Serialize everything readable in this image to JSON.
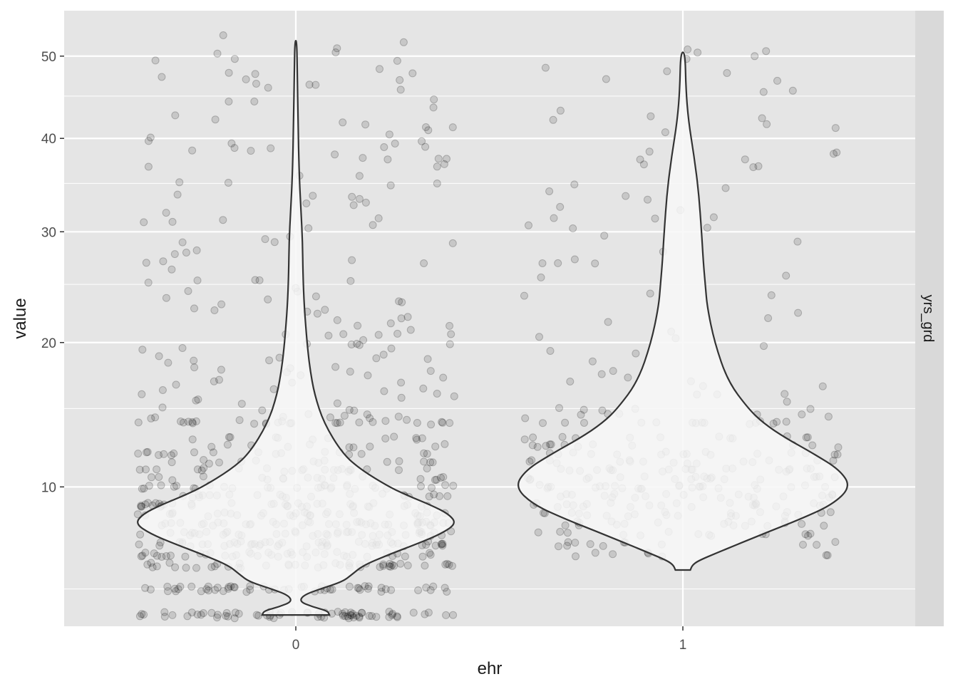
{
  "chart_data": {
    "type": "violin",
    "xlabel": "ehr",
    "ylabel": "value",
    "facet_label": "yrs_grd",
    "y_scale": "sqrt",
    "ylim": [
      3.6,
      56
    ],
    "y_ticks": [
      10,
      20,
      30,
      40,
      50
    ],
    "y_minor_ticks": [
      5,
      15,
      25,
      35,
      45
    ],
    "categories": [
      "0",
      "1"
    ],
    "colors": {
      "panel_bg": "#e5e5e5",
      "grid": "#ffffff",
      "strip_bg": "#d9d9d9",
      "violin_fill": "#f7f7f7",
      "violin_stroke": "#333333",
      "point": "#000000"
    },
    "violins": [
      {
        "category": "0",
        "y_min": 4,
        "y_max": 52,
        "profile": [
          [
            4.0,
            0.18
          ],
          [
            4.15,
            0.17
          ],
          [
            4.3,
            0.09
          ],
          [
            4.5,
            0.02
          ],
          [
            4.75,
            0.04
          ],
          [
            5.0,
            0.13
          ],
          [
            5.3,
            0.25
          ],
          [
            5.6,
            0.3
          ],
          [
            6.0,
            0.36
          ],
          [
            6.5,
            0.5
          ],
          [
            7.0,
            0.65
          ],
          [
            7.5,
            0.78
          ],
          [
            8.0,
            0.86
          ],
          [
            8.5,
            0.82
          ],
          [
            9.0,
            0.72
          ],
          [
            9.5,
            0.6
          ],
          [
            10.0,
            0.5
          ],
          [
            11.0,
            0.35
          ],
          [
            12.0,
            0.25
          ],
          [
            14.0,
            0.15
          ],
          [
            16.0,
            0.1
          ],
          [
            18.0,
            0.075
          ],
          [
            20.0,
            0.06
          ],
          [
            23.0,
            0.045
          ],
          [
            26.0,
            0.038
          ],
          [
            29.0,
            0.036
          ],
          [
            32.0,
            0.028
          ],
          [
            36.0,
            0.018
          ],
          [
            42.0,
            0.012
          ],
          [
            48.0,
            0.008
          ],
          [
            52.0,
            0.005
          ]
        ]
      },
      {
        "category": "1",
        "y_min": 5.8,
        "y_max": 50.5,
        "profile": [
          [
            5.8,
            0.04
          ],
          [
            6.0,
            0.05
          ],
          [
            6.2,
            0.08
          ],
          [
            6.6,
            0.19
          ],
          [
            7.0,
            0.3
          ],
          [
            7.6,
            0.46
          ],
          [
            8.2,
            0.62
          ],
          [
            9.0,
            0.8
          ],
          [
            10.0,
            0.9
          ],
          [
            11.0,
            0.84
          ],
          [
            12.0,
            0.7
          ],
          [
            13.0,
            0.55
          ],
          [
            14.0,
            0.43
          ],
          [
            15.0,
            0.35
          ],
          [
            17.0,
            0.24
          ],
          [
            20.0,
            0.17
          ],
          [
            23.0,
            0.13
          ],
          [
            25.0,
            0.12
          ],
          [
            27.0,
            0.11
          ],
          [
            30.0,
            0.1
          ],
          [
            34.0,
            0.085
          ],
          [
            38.0,
            0.06
          ],
          [
            42.0,
            0.03
          ],
          [
            46.0,
            0.016
          ],
          [
            50.5,
            0.012
          ]
        ]
      }
    ],
    "points": [
      {
        "category": "0",
        "levels": [
          [
            4,
            70
          ],
          [
            5,
            55
          ],
          [
            6,
            45
          ],
          [
            6.5,
            40
          ],
          [
            7,
            50
          ],
          [
            7.5,
            40
          ],
          [
            8,
            40
          ],
          [
            8.5,
            30
          ],
          [
            9,
            35
          ],
          [
            9.5,
            22
          ],
          [
            10,
            30
          ],
          [
            10.5,
            18
          ],
          [
            11,
            22
          ],
          [
            11.5,
            14
          ],
          [
            12,
            18
          ],
          [
            12.5,
            10
          ],
          [
            13,
            12
          ],
          [
            14,
            10
          ]
        ],
        "continuous": {
          "count": 190,
          "min": 14,
          "max": 53
        }
      },
      {
        "category": "1",
        "levels": [
          [
            6.5,
            8
          ],
          [
            7,
            12
          ],
          [
            7.5,
            14
          ],
          [
            8,
            18
          ],
          [
            8.5,
            20
          ],
          [
            9,
            22
          ],
          [
            9.5,
            20
          ],
          [
            10,
            24
          ],
          [
            10.5,
            20
          ],
          [
            11,
            20
          ],
          [
            11.5,
            16
          ],
          [
            12,
            16
          ],
          [
            12.5,
            12
          ],
          [
            13,
            12
          ],
          [
            14,
            10
          ]
        ],
        "continuous": {
          "count": 90,
          "min": 14,
          "max": 51
        }
      }
    ]
  }
}
